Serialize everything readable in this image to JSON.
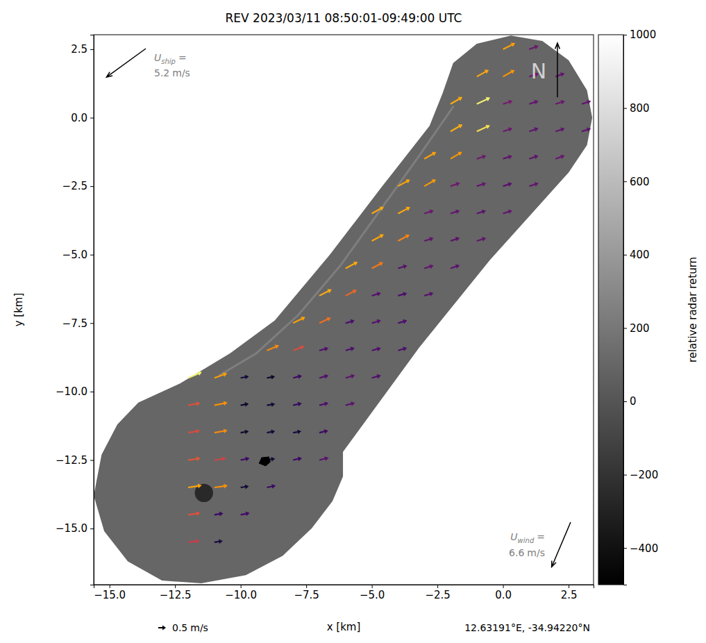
{
  "chart_data": {
    "type": "quiver",
    "title": "REV 2023/03/11 08:50:01-09:49:00 UTC",
    "x_label": "x [km]",
    "y_label": "y [km]",
    "xlim": [
      -15.6,
      3.45
    ],
    "ylim": [
      -17.05,
      3.03
    ],
    "xticks": [
      {
        "value": -15,
        "label": "−15.0"
      },
      {
        "value": -12.5,
        "label": "−12.5"
      },
      {
        "value": -10,
        "label": "−10.0"
      },
      {
        "value": -7.5,
        "label": "−7.5"
      },
      {
        "value": -5,
        "label": "−5.0"
      },
      {
        "value": -2.5,
        "label": "−2.5"
      },
      {
        "value": 0,
        "label": "0.0"
      },
      2.5
    ],
    "yticks": [
      2.5,
      {
        "value": 0,
        "label": "0.0"
      },
      {
        "value": -2.5,
        "label": "−2.5"
      },
      {
        "value": -5,
        "label": "−5.0"
      },
      {
        "value": -7.5,
        "label": "−7.5"
      },
      {
        "value": -10,
        "label": "−10.0"
      },
      {
        "value": -12.5,
        "label": "−12.5"
      },
      {
        "value": -15,
        "label": "−15.0"
      }
    ],
    "grid": false,
    "colorbar": {
      "label": "relative radar return",
      "range": [
        -500,
        1000
      ],
      "ticks": [
        {
          "value": -400,
          "label": "−400"
        },
        {
          "value": -200,
          "label": "−200"
        },
        0,
        200,
        400,
        600,
        800,
        1000
      ]
    },
    "swath": {
      "return": 100,
      "outline": [
        [
          -1.9,
          2.0
        ],
        [
          -1.0,
          2.7
        ],
        [
          0.3,
          3.0
        ],
        [
          1.5,
          2.8
        ],
        [
          2.5,
          2.1
        ],
        [
          3.2,
          1.0
        ],
        [
          3.4,
          0.0
        ],
        [
          3.2,
          -1.0
        ],
        [
          2.5,
          -2.0
        ],
        [
          -0.5,
          -5.2
        ],
        [
          -3.2,
          -8.4
        ],
        [
          -6.1,
          -12.2
        ],
        [
          -6.1,
          -13.1
        ],
        [
          -6.5,
          -14.0
        ],
        [
          -7.3,
          -15.0
        ],
        [
          -8.4,
          -16.0
        ],
        [
          -9.8,
          -16.7
        ],
        [
          -11.5,
          -17.0
        ],
        [
          -13.0,
          -16.9
        ],
        [
          -14.3,
          -16.2
        ],
        [
          -15.2,
          -15.1
        ],
        [
          -15.6,
          -13.8
        ],
        [
          -15.3,
          -12.3
        ],
        [
          -14.7,
          -11.2
        ],
        [
          -13.9,
          -10.4
        ],
        [
          -12.3,
          -9.7
        ],
        [
          -10.4,
          -8.6
        ],
        [
          -8.7,
          -7.4
        ],
        [
          -6.6,
          -5.0
        ],
        [
          -4.6,
          -2.5
        ],
        [
          -2.8,
          -0.3
        ],
        [
          -2.3,
          0.9
        ]
      ]
    },
    "front": {
      "return": 350,
      "points": [
        [
          -10.8,
          -9.4
        ],
        [
          -9.4,
          -8.6
        ],
        [
          -7.8,
          -7.2
        ],
        [
          -6.2,
          -5.4
        ],
        [
          -4.7,
          -3.4
        ],
        [
          -3.2,
          -1.4
        ],
        [
          -1.9,
          0.4
        ]
      ]
    },
    "spots": [
      {
        "x": -11.4,
        "y": -13.7,
        "radius": 0.35,
        "return": -350
      }
    ],
    "ship_position": [
      -9.1,
      -12.55
    ],
    "speed_range": [
      0.5,
      1.0
    ],
    "vectors": [
      [
        0,
        2.5,
        0.8,
        0.4
      ],
      [
        1,
        2.5,
        0.61,
        0.22
      ],
      [
        -1,
        1.5,
        0.79,
        0.44
      ],
      [
        0,
        1.5,
        0.77,
        0.43
      ],
      [
        1,
        1.5,
        0.62,
        0.21
      ],
      [
        2,
        1.5,
        0.6,
        0.22
      ],
      [
        -2,
        0.5,
        0.78,
        0.46
      ],
      [
        -1,
        0.5,
        0.88,
        0.42
      ],
      [
        0,
        0.5,
        0.63,
        0.21
      ],
      [
        1,
        0.5,
        0.61,
        0.2
      ],
      [
        2,
        0.5,
        0.62,
        0.19
      ],
      [
        3,
        0.5,
        0.61,
        0.2
      ],
      [
        -2,
        -0.5,
        0.79,
        0.45
      ],
      [
        -1,
        -0.5,
        0.87,
        0.4
      ],
      [
        0,
        -0.5,
        0.62,
        0.2
      ],
      [
        1,
        -0.5,
        0.6,
        0.21
      ],
      [
        2,
        -0.5,
        0.61,
        0.19
      ],
      [
        3,
        -0.5,
        0.6,
        0.19
      ],
      [
        -3,
        -1.5,
        0.78,
        0.44
      ],
      [
        -2,
        -1.5,
        0.76,
        0.45
      ],
      [
        -1,
        -1.5,
        0.62,
        0.2
      ],
      [
        0,
        -1.5,
        0.61,
        0.19
      ],
      [
        1,
        -1.5,
        0.6,
        0.2
      ],
      [
        2,
        -1.5,
        0.61,
        0.21
      ],
      [
        -4,
        -2.5,
        0.79,
        0.43
      ],
      [
        -3,
        -2.5,
        0.77,
        0.44
      ],
      [
        -2,
        -2.5,
        0.62,
        0.21
      ],
      [
        -1,
        -2.5,
        0.61,
        0.2
      ],
      [
        0,
        -2.5,
        0.6,
        0.19
      ],
      [
        1,
        -2.5,
        0.61,
        0.2
      ],
      [
        -5,
        -3.5,
        0.79,
        0.44
      ],
      [
        -4,
        -3.5,
        0.8,
        0.42
      ],
      [
        -3,
        -3.5,
        0.62,
        0.2
      ],
      [
        -2,
        -3.5,
        0.61,
        0.2
      ],
      [
        -1,
        -3.5,
        0.6,
        0.19
      ],
      [
        0,
        -3.5,
        0.61,
        0.2
      ],
      [
        -5,
        -4.5,
        0.79,
        0.43
      ],
      [
        -4,
        -4.5,
        0.76,
        0.41
      ],
      [
        -3,
        -4.5,
        0.61,
        0.19
      ],
      [
        -2,
        -4.5,
        0.6,
        0.2
      ],
      [
        -1,
        -4.5,
        0.61,
        0.19
      ],
      [
        -6,
        -5.5,
        0.8,
        0.42
      ],
      [
        -5,
        -5.5,
        0.75,
        0.4
      ],
      [
        -4,
        -5.5,
        0.6,
        0.18
      ],
      [
        -3,
        -5.5,
        0.61,
        0.19
      ],
      [
        -2,
        -5.5,
        0.6,
        0.2
      ],
      [
        -7,
        -6.5,
        0.81,
        0.41
      ],
      [
        -6,
        -6.5,
        0.74,
        0.38
      ],
      [
        -5,
        -6.5,
        0.6,
        0.18
      ],
      [
        -4,
        -6.5,
        0.59,
        0.17
      ],
      [
        -3,
        -6.5,
        0.6,
        0.18
      ],
      [
        -8,
        -7.5,
        0.8,
        0.4
      ],
      [
        -7,
        -7.5,
        0.76,
        0.36
      ],
      [
        -6,
        -7.5,
        0.59,
        0.17
      ],
      [
        -5,
        -7.5,
        0.6,
        0.18
      ],
      [
        -4,
        -7.5,
        0.59,
        0.17
      ],
      [
        -9,
        -8.5,
        0.8,
        0.34
      ],
      [
        -8,
        -8.5,
        0.74,
        0.28
      ],
      [
        -7,
        -8.5,
        0.6,
        0.16
      ],
      [
        -6,
        -8.5,
        0.59,
        0.17
      ],
      [
        -5,
        -8.5,
        0.6,
        0.16
      ],
      [
        -4,
        -8.5,
        0.59,
        0.17
      ],
      [
        -12,
        -9.5,
        0.9,
        0.38
      ],
      [
        -11,
        -9.5,
        0.84,
        0.3
      ],
      [
        -10,
        -9.5,
        0.54,
        0.1
      ],
      [
        -9,
        -9.5,
        0.53,
        0.09
      ],
      [
        -8,
        -9.5,
        0.58,
        0.14
      ],
      [
        -7,
        -9.5,
        0.6,
        0.16
      ],
      [
        -6,
        -9.5,
        0.61,
        0.17
      ],
      [
        -5,
        -9.5,
        0.6,
        0.16
      ],
      [
        -12,
        -10.5,
        0.79,
        0.14
      ],
      [
        -11,
        -10.5,
        0.86,
        0.18
      ],
      [
        -10,
        -10.5,
        0.53,
        0.1
      ],
      [
        -9,
        -10.5,
        0.54,
        0.09
      ],
      [
        -8,
        -10.5,
        0.57,
        0.13
      ],
      [
        -7,
        -10.5,
        0.6,
        0.15
      ],
      [
        -6,
        -10.5,
        0.61,
        0.16
      ],
      [
        -12,
        -11.5,
        0.78,
        0.13
      ],
      [
        -11,
        -11.5,
        0.86,
        0.15
      ],
      [
        -10,
        -11.5,
        0.53,
        0.09
      ],
      [
        -9,
        -11.5,
        0.54,
        0.1
      ],
      [
        -8,
        -11.5,
        0.54,
        0.09
      ],
      [
        -7,
        -11.5,
        0.58,
        0.13
      ],
      [
        -12,
        -12.5,
        0.8,
        0.12
      ],
      [
        -11,
        -12.5,
        0.77,
        0.12
      ],
      [
        -10,
        -12.5,
        0.58,
        0.12
      ],
      [
        -9,
        -12.5,
        0.54,
        0.09
      ],
      [
        -8,
        -12.5,
        0.58,
        0.13
      ],
      [
        -7,
        -12.5,
        0.61,
        0.15
      ],
      [
        -12,
        -13.5,
        0.89,
        0.13
      ],
      [
        -11,
        -13.5,
        0.87,
        0.12
      ],
      [
        -10,
        -13.5,
        0.54,
        0.08
      ],
      [
        -9,
        -13.5,
        0.58,
        0.12
      ],
      [
        -12,
        -14.5,
        0.79,
        0.12
      ],
      [
        -11,
        -14.5,
        0.58,
        0.1
      ],
      [
        -10,
        -14.5,
        0.59,
        0.12
      ],
      [
        -12,
        -15.5,
        0.76,
        0.1
      ],
      [
        -11,
        -15.5,
        0.55,
        0.08
      ]
    ],
    "quiver_key": {
      "speed": 0.5,
      "unit": "m/s"
    },
    "ship": {
      "symbol": "U",
      "subscript": "ship",
      "relation": "=",
      "speed": 5.2,
      "unit": "m/s",
      "heading": 234
    },
    "wind": {
      "symbol": "U",
      "subscript": "wind",
      "relation": "=",
      "speed": 6.6,
      "unit": "m/s",
      "heading": 203
    },
    "north": {
      "label": "N",
      "heading": 0
    },
    "location": "12.63191°E, -34.94220°N"
  }
}
